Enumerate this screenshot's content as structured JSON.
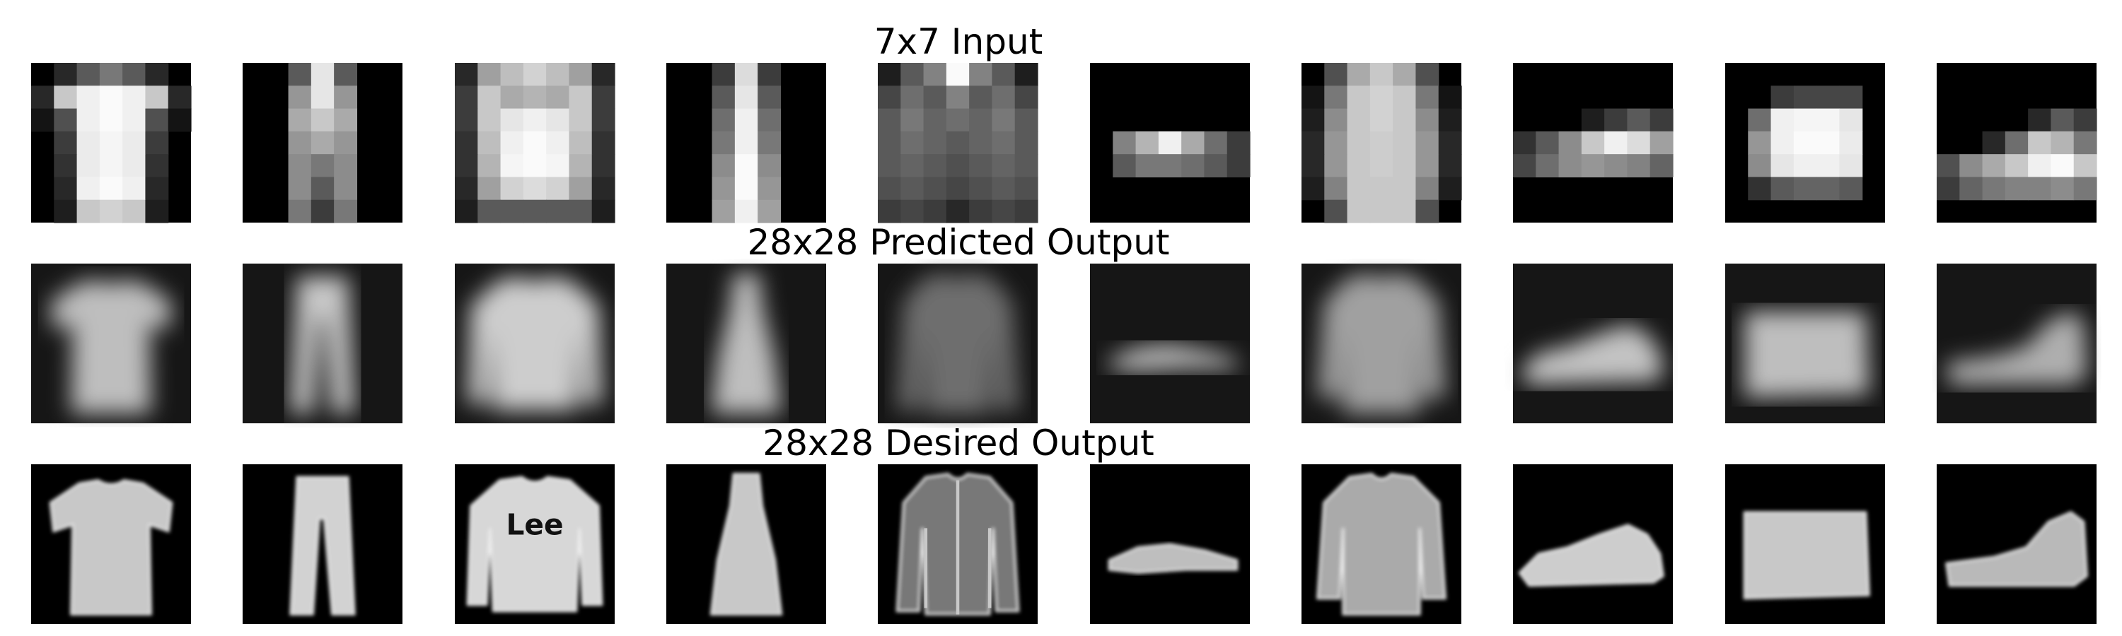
{
  "rows": [
    {
      "title": "7x7 Input",
      "kind": "7x7 pixel-block inputs",
      "items": [
        "t-shirt",
        "trousers",
        "pullover",
        "dress",
        "coat",
        "sandal",
        "shirt",
        "sneaker",
        "bag",
        "ankle boot"
      ]
    },
    {
      "title": "28x28 Predicted Output",
      "kind": "blurry reconstructions",
      "items": [
        "t-shirt",
        "trousers",
        "pullover",
        "dress",
        "coat",
        "sandal",
        "shirt",
        "sneaker",
        "bag",
        "ankle boot"
      ]
    },
    {
      "title": "28x28 Desired Output",
      "kind": "sharp ground-truth images",
      "items": [
        "t-shirt",
        "trousers",
        "pullover",
        "dress",
        "coat",
        "sandal",
        "shirt",
        "sneaker",
        "bag",
        "ankle boot"
      ]
    }
  ]
}
